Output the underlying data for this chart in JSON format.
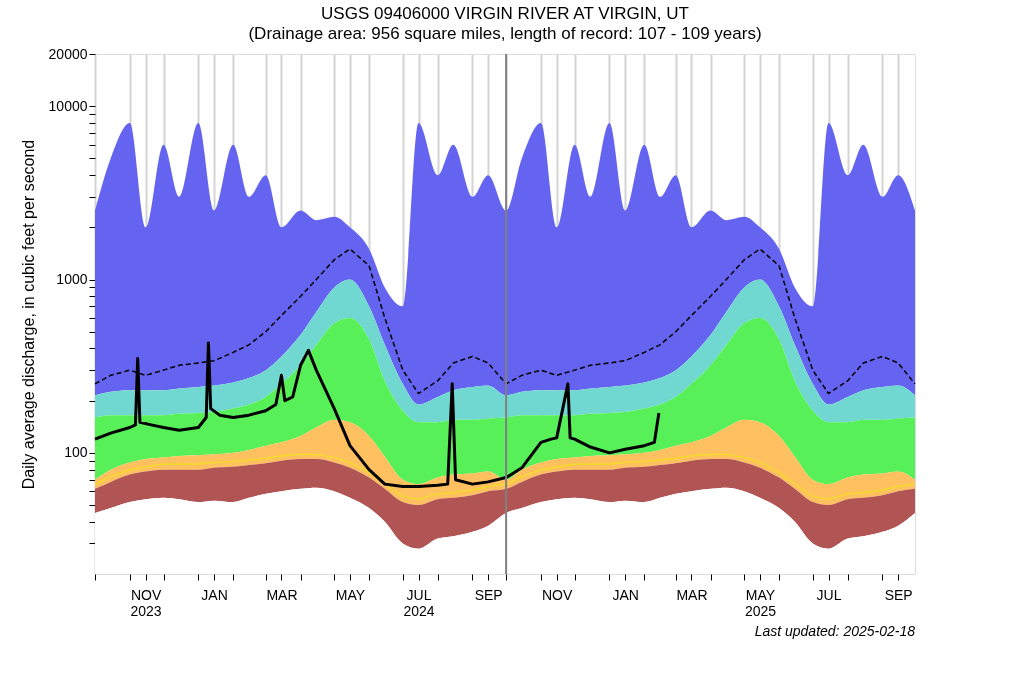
{
  "chart_data": {
    "type": "area",
    "title": "USGS 09406000 VIRGIN RIVER AT VIRGIN, UT",
    "subtitle": "(Drainage area: 956 square miles, length of record: 107 - 109 years)",
    "ylabel": "Daily average discharge, in cubic feet per second",
    "annotations": [
      "Last updated: 2025-02-18"
    ],
    "log": "y",
    "grid": "x",
    "xlim": [
      "2023-10-01",
      "2025-09-30"
    ],
    "ylim": [
      20,
      20000
    ],
    "xticks": [
      {
        "value": "2023-10-01",
        "label": null
      },
      {
        "value": "2023-11-01",
        "label": null
      },
      {
        "value": "2023-11-15",
        "label": "NOV\n2023"
      },
      {
        "value": "2023-12-01",
        "label": null
      },
      {
        "value": "2024-01-01",
        "label": null
      },
      {
        "value": "2024-01-15",
        "label": "JAN"
      },
      {
        "value": "2024-02-01",
        "label": null
      },
      {
        "value": "2024-03-01",
        "label": null
      },
      {
        "value": "2024-03-15",
        "label": "MAR"
      },
      {
        "value": "2024-04-01",
        "label": null
      },
      {
        "value": "2024-05-01",
        "label": null
      },
      {
        "value": "2024-05-15",
        "label": "MAY"
      },
      {
        "value": "2024-06-01",
        "label": null
      },
      {
        "value": "2024-07-01",
        "label": null
      },
      {
        "value": "2024-07-15",
        "label": "JUL\n2024"
      },
      {
        "value": "2024-08-01",
        "label": null
      },
      {
        "value": "2024-09-01",
        "label": null
      },
      {
        "value": "2024-09-15",
        "label": "SEP"
      },
      {
        "value": "2024-10-01",
        "label": null
      },
      {
        "value": "2024-11-01",
        "label": null
      },
      {
        "value": "2024-11-15",
        "label": "NOV"
      },
      {
        "value": "2024-12-01",
        "label": null
      },
      {
        "value": "2025-01-01",
        "label": null
      },
      {
        "value": "2025-01-15",
        "label": "JAN"
      },
      {
        "value": "2025-02-01",
        "label": null
      },
      {
        "value": "2025-03-01",
        "label": null
      },
      {
        "value": "2025-03-15",
        "label": "MAR"
      },
      {
        "value": "2025-04-01",
        "label": null
      },
      {
        "value": "2025-05-01",
        "label": null
      },
      {
        "value": "2025-05-15",
        "label": "MAY\n2025"
      },
      {
        "value": "2025-06-01",
        "label": null
      },
      {
        "value": "2025-07-01",
        "label": null
      },
      {
        "value": "2025-07-15",
        "label": "JUL"
      },
      {
        "value": "2025-08-01",
        "label": null
      },
      {
        "value": "2025-09-01",
        "label": null
      },
      {
        "value": "2025-09-15",
        "label": "SEP"
      }
    ],
    "yticks": [
      {
        "value": 30,
        "label": null
      },
      {
        "value": 40,
        "label": null
      },
      {
        "value": 50,
        "label": null
      },
      {
        "value": 60,
        "label": null
      },
      {
        "value": 70,
        "label": null
      },
      {
        "value": 80,
        "label": null
      },
      {
        "value": 90,
        "label": null
      },
      100,
      {
        "value": 200,
        "label": null
      },
      {
        "value": 300,
        "label": null
      },
      {
        "value": 400,
        "label": null
      },
      {
        "value": 500,
        "label": null
      },
      {
        "value": 600,
        "label": null
      },
      {
        "value": 700,
        "label": null
      },
      {
        "value": 800,
        "label": null
      },
      {
        "value": 900,
        "label": null
      },
      1000,
      {
        "value": 2000,
        "label": null
      },
      {
        "value": 3000,
        "label": null
      },
      {
        "value": 4000,
        "label": null
      },
      {
        "value": 5000,
        "label": null
      },
      {
        "value": 6000,
        "label": null
      },
      {
        "value": 7000,
        "label": null
      },
      {
        "value": 8000,
        "label": null
      },
      {
        "value": 9000,
        "label": null
      },
      10000,
      20000
    ],
    "ref_lines": [
      {
        "axis": "x",
        "value": "2024-10-01",
        "color": "#808080"
      }
    ],
    "x": [
      "2023-10-01",
      "2023-10-15",
      "2023-11-01",
      "2023-11-15",
      "2023-12-01",
      "2023-12-15",
      "2024-01-01",
      "2024-01-15",
      "2024-02-01",
      "2024-02-15",
      "2024-03-01",
      "2024-03-15",
      "2024-04-01",
      "2024-04-15",
      "2024-05-01",
      "2024-05-15",
      "2024-06-01",
      "2024-06-15",
      "2024-07-01",
      "2024-07-15",
      "2024-08-01",
      "2024-08-15",
      "2024-09-01",
      "2024-09-15",
      "2024-10-01",
      "2024-10-15",
      "2024-11-01",
      "2024-11-15",
      "2024-12-01",
      "2024-12-15",
      "2025-01-01",
      "2025-01-15",
      "2025-02-01",
      "2025-02-15",
      "2025-03-01",
      "2025-03-15",
      "2025-04-01",
      "2025-04-15",
      "2025-05-01",
      "2025-05-15",
      "2025-06-01",
      "2025-06-15",
      "2025-07-01",
      "2025-07-15",
      "2025-08-01",
      "2025-08-15",
      "2025-09-01",
      "2025-09-15",
      "2025-09-30"
    ],
    "series": [
      {
        "color": "#6464f0",
        "values": [
          2500,
          5000,
          8000,
          2000,
          6000,
          3000,
          8000,
          2500,
          6000,
          3000,
          4000,
          2000,
          2500,
          2200,
          2300,
          2000,
          1500,
          900,
          700,
          8000,
          4000,
          6000,
          3000,
          4000,
          2500,
          5000,
          8000,
          2000,
          6000,
          3000,
          8000,
          2500,
          6000,
          3000,
          4000,
          2000,
          2500,
          2200,
          2300,
          2000,
          1500,
          900,
          700,
          8000,
          4000,
          6000,
          3000,
          4000,
          2500
        ]
      },
      {
        "color": "#70d8d0",
        "values": [
          215,
          225,
          230,
          230,
          230,
          235,
          240,
          245,
          255,
          270,
          300,
          360,
          480,
          650,
          900,
          1000,
          700,
          420,
          250,
          190,
          210,
          230,
          240,
          245,
          215,
          225,
          230,
          230,
          230,
          235,
          240,
          245,
          255,
          270,
          300,
          360,
          480,
          650,
          900,
          1000,
          700,
          420,
          250,
          190,
          210,
          230,
          240,
          245,
          215
        ]
      },
      {
        "color": "#58f058",
        "values": [
          160,
          165,
          165,
          165,
          165,
          168,
          170,
          172,
          180,
          190,
          210,
          250,
          320,
          420,
          560,
          600,
          450,
          260,
          175,
          150,
          150,
          155,
          155,
          158,
          160,
          165,
          165,
          165,
          165,
          168,
          170,
          172,
          180,
          190,
          210,
          250,
          320,
          420,
          560,
          600,
          450,
          260,
          175,
          150,
          150,
          155,
          155,
          158,
          160
        ]
      },
      {
        "color": "#ffc060",
        "values": [
          70,
          80,
          88,
          92,
          94,
          96,
          97,
          98,
          100,
          104,
          110,
          115,
          125,
          140,
          155,
          150,
          125,
          95,
          70,
          66,
          72,
          75,
          76,
          78,
          70,
          80,
          88,
          92,
          94,
          96,
          97,
          98,
          100,
          104,
          110,
          115,
          125,
          140,
          155,
          150,
          125,
          95,
          70,
          66,
          72,
          75,
          76,
          78,
          70
        ]
      },
      {
        "color": "#b05454",
        "values": [
          62,
          68,
          75,
          78,
          80,
          80,
          80,
          82,
          83,
          85,
          87,
          90,
          92,
          92,
          88,
          82,
          72,
          62,
          52,
          50,
          54,
          55,
          57,
          60,
          62,
          68,
          75,
          78,
          80,
          80,
          80,
          82,
          83,
          85,
          87,
          90,
          92,
          92,
          88,
          82,
          72,
          62,
          52,
          50,
          54,
          55,
          57,
          60,
          62
        ]
      },
      {
        "color": "#ffffff",
        "values": [
          45,
          48,
          52,
          54,
          55,
          54,
          52,
          53,
          52,
          55,
          58,
          60,
          62,
          63,
          60,
          55,
          48,
          40,
          30,
          28,
          32,
          33,
          35,
          38,
          45,
          48,
          52,
          54,
          55,
          54,
          52,
          53,
          52,
          55,
          58,
          60,
          62,
          63,
          60,
          55,
          48,
          40,
          30,
          28,
          32,
          33,
          35,
          38,
          45
        ]
      },
      {
        "type": "line",
        "color": "#f0e020",
        "values": [
          66,
          73,
          80,
          83,
          86,
          86,
          86,
          88,
          89,
          91,
          93,
          96,
          98,
          98,
          94,
          88,
          77,
          66,
          56,
          54,
          58,
          59,
          61,
          64,
          66,
          73,
          80,
          83,
          86,
          86,
          86,
          88,
          89,
          91,
          93,
          96,
          98,
          98,
          94,
          88,
          77,
          66,
          56,
          54,
          58,
          59,
          61,
          64,
          66
        ]
      },
      {
        "type": "line",
        "line_style": "dashed",
        "color": "#000000",
        "values": [
          250,
          280,
          300,
          280,
          300,
          320,
          330,
          340,
          380,
          420,
          500,
          620,
          800,
          1000,
          1300,
          1500,
          1200,
          600,
          300,
          220,
          260,
          330,
          360,
          330,
          250,
          280,
          300,
          280,
          300,
          320,
          330,
          340,
          380,
          420,
          500,
          620,
          800,
          1000,
          1300,
          1500,
          1200,
          600,
          300,
          220,
          260,
          330,
          360,
          330,
          250
        ]
      },
      {
        "type": "line",
        "color": "#000000",
        "x": [
          "2023-10-01",
          "2023-10-15",
          "2023-11-01",
          "2023-11-06",
          "2023-11-08",
          "2023-11-10",
          "2023-11-20",
          "2023-12-01",
          "2023-12-15",
          "2024-01-01",
          "2024-01-08",
          "2024-01-10",
          "2024-01-12",
          "2024-01-20",
          "2024-02-01",
          "2024-02-15",
          "2024-03-01",
          "2024-03-10",
          "2024-03-15",
          "2024-03-18",
          "2024-03-25",
          "2024-04-01",
          "2024-04-08",
          "2024-04-15",
          "2024-05-01",
          "2024-05-15",
          "2024-06-01",
          "2024-06-15",
          "2024-07-01",
          "2024-07-15",
          "2024-08-01",
          "2024-08-10",
          "2024-08-14",
          "2024-08-17",
          "2024-09-01",
          "2024-09-15",
          "2024-10-01",
          "2024-10-15",
          "2024-11-01",
          "2024-11-10",
          "2024-11-15",
          "2024-11-25",
          "2024-11-27",
          "2024-12-01",
          "2024-12-15",
          "2025-01-01",
          "2025-01-15",
          "2025-02-01",
          "2025-02-10",
          "2025-02-14"
        ],
        "values": [
          120,
          130,
          140,
          145,
          350,
          150,
          145,
          140,
          135,
          140,
          160,
          430,
          180,
          165,
          160,
          165,
          175,
          190,
          280,
          200,
          210,
          320,
          390,
          300,
          180,
          110,
          80,
          66,
          64,
          64,
          65,
          66,
          250,
          70,
          66,
          68,
          72,
          82,
          115,
          120,
          122,
          250,
          122,
          120,
          108,
          100,
          105,
          110,
          115,
          170
        ]
      }
    ]
  }
}
